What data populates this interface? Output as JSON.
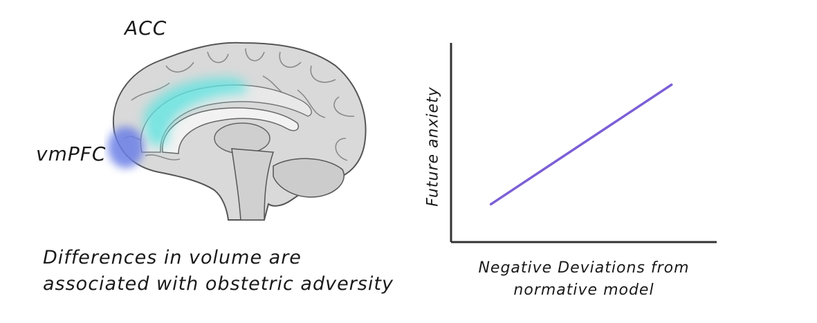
{
  "brain": {
    "acc_label": "ACC",
    "vmpfc_label": "vmPFC",
    "acc_color": "#5fe3e0",
    "vmpfc_color": "#6b7fe6"
  },
  "caption": {
    "line1": "Differences in volume are",
    "line2": "associated with obstetric adversity"
  },
  "chart_data": {
    "type": "line",
    "xlabel": "Negative Deviations from normative model",
    "xlabel_lines": [
      "Negative Deviations from",
      "normative model"
    ],
    "ylabel": "Future anxiety",
    "grid": false,
    "series": [
      {
        "color": "#7b5fd6",
        "x": [
          0.15,
          0.83
        ],
        "y": [
          0.19,
          0.79
        ]
      }
    ],
    "xlim": [
      0,
      1
    ],
    "ylim": [
      0,
      1
    ]
  }
}
